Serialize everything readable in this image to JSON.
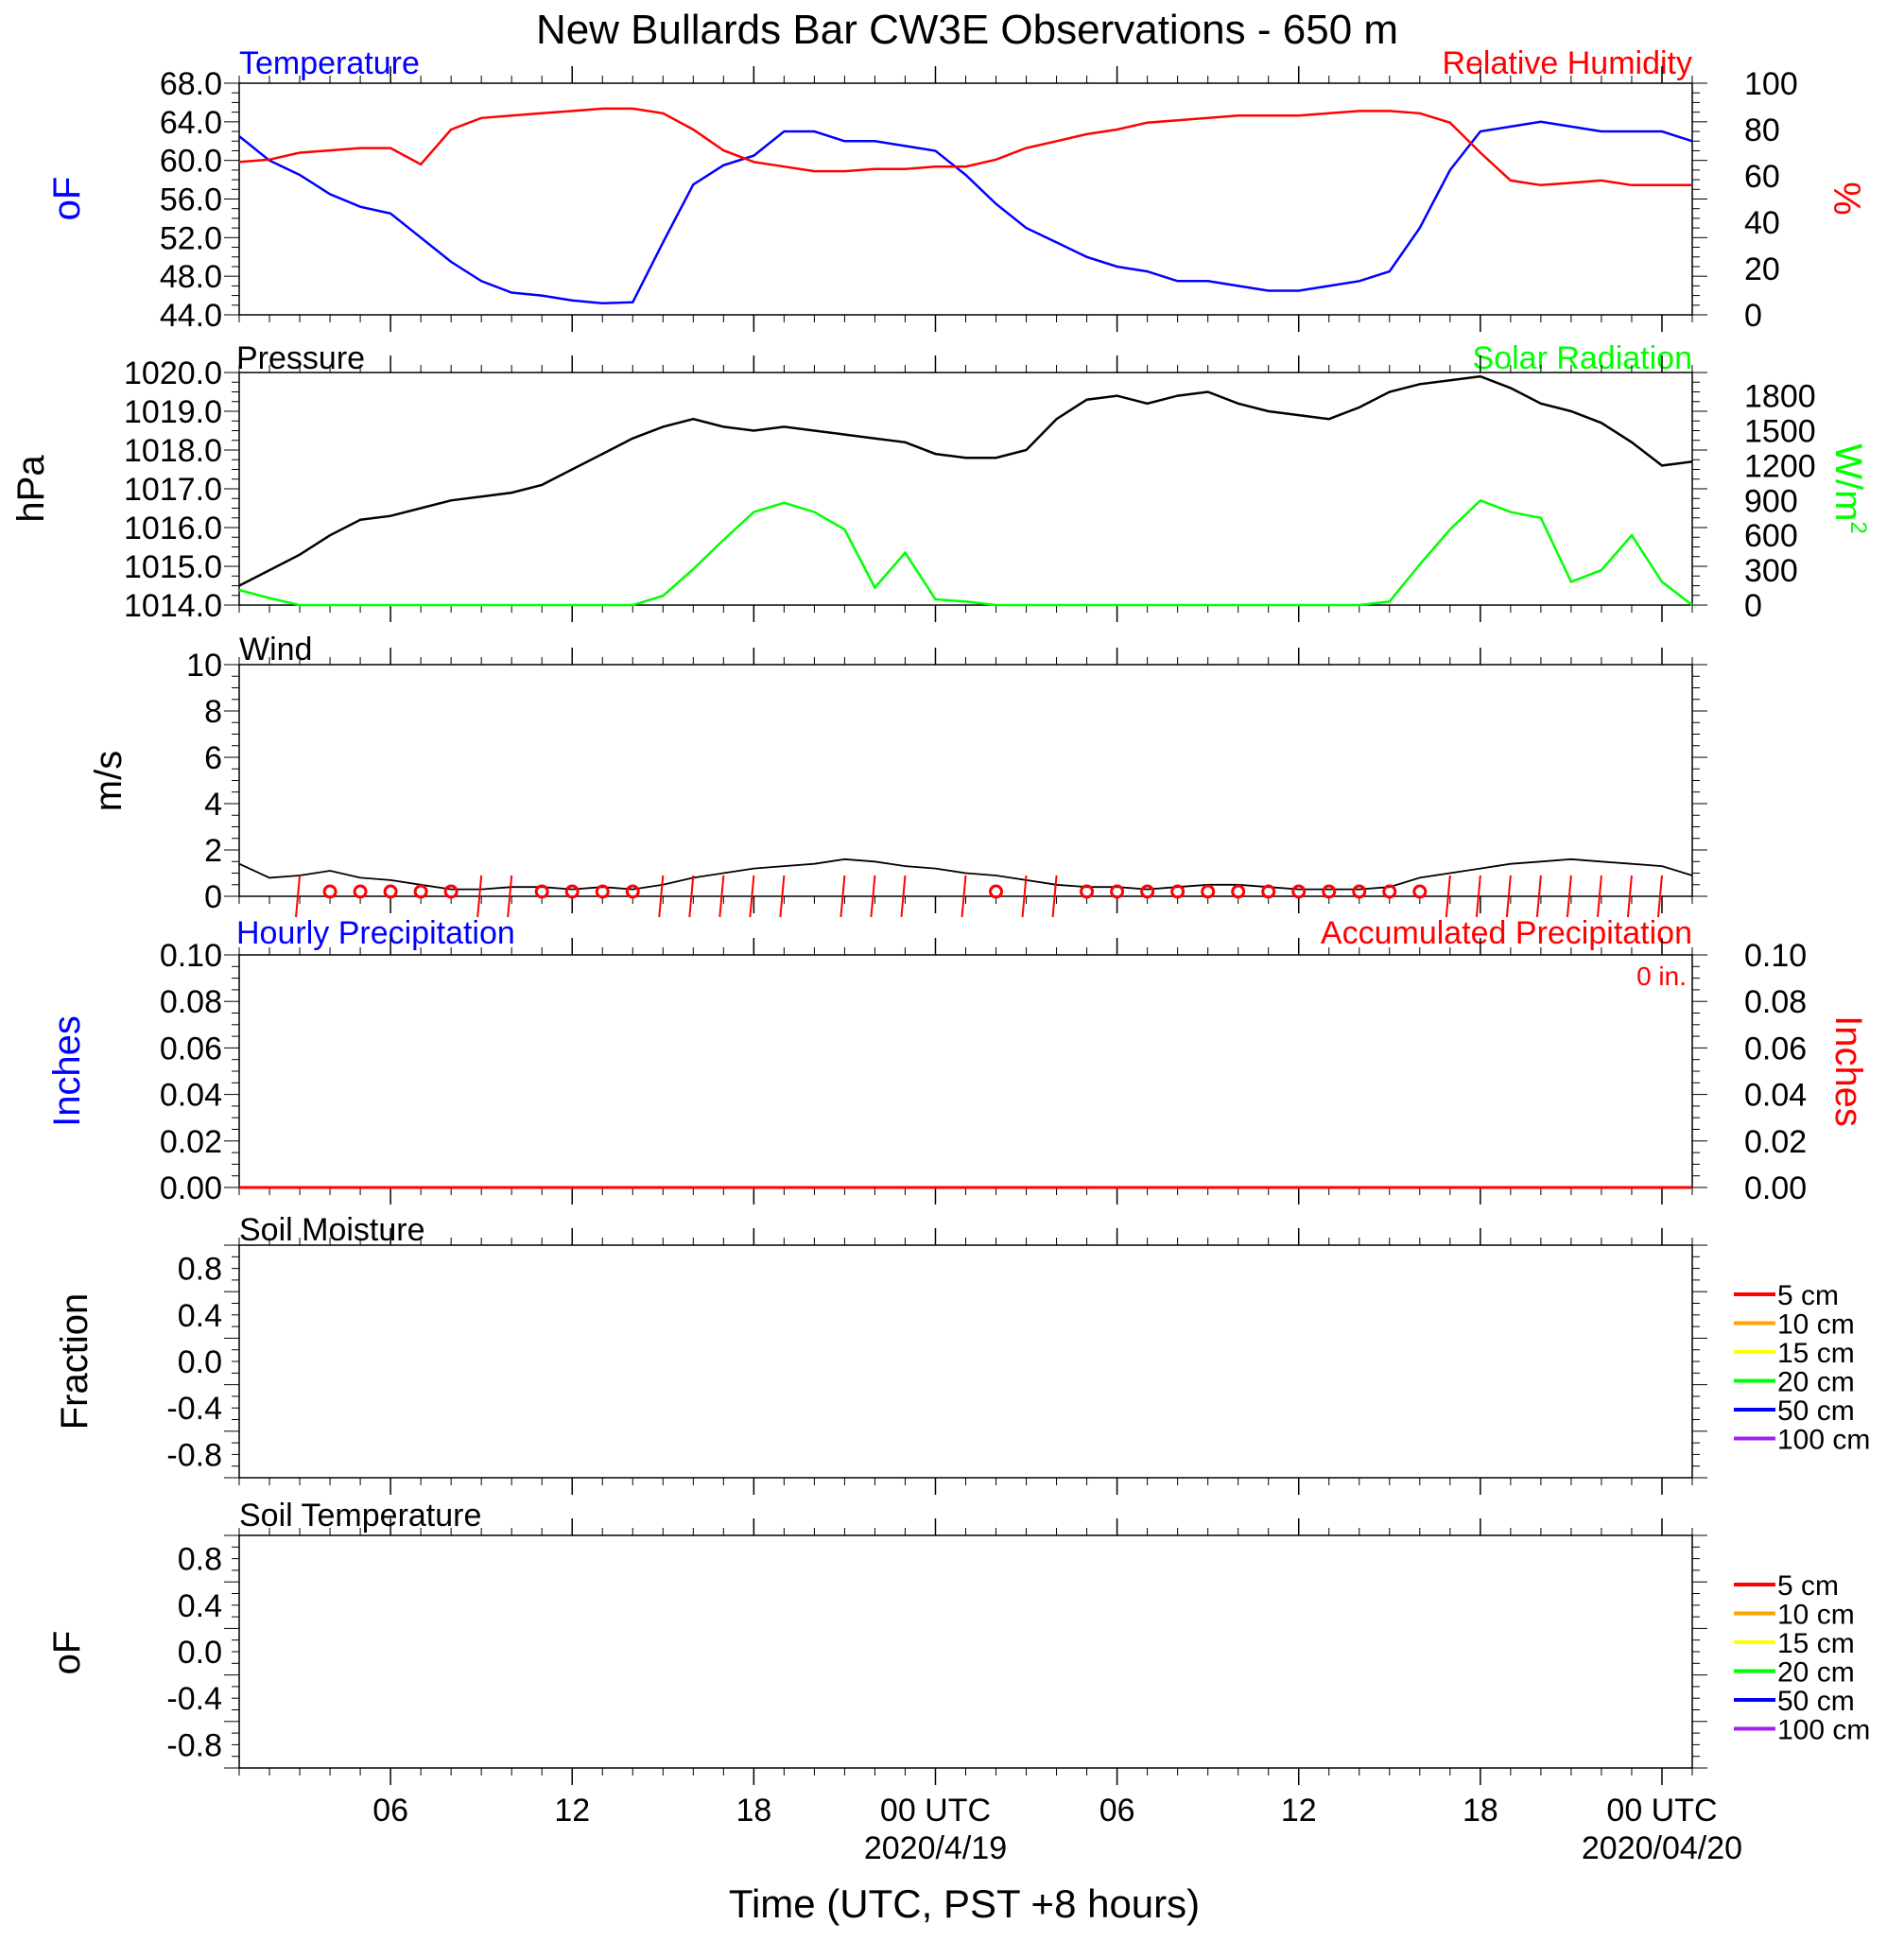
{
  "title": "New Bullards Bar CW3E Observations - 650 m",
  "xaxis": {
    "label": "Time (UTC, PST +8 hours)",
    "ticks": [
      "06",
      "12",
      "18",
      "00 UTC",
      "06",
      "12",
      "18",
      "00 UTC"
    ],
    "tick_hours": [
      6,
      12,
      18,
      24,
      30,
      36,
      42,
      48
    ],
    "dates": [
      {
        "hour": 24,
        "text": "2020/4/19"
      },
      {
        "hour": 48,
        "text": "2020/04/20"
      }
    ],
    "range_hours": [
      1,
      49
    ]
  },
  "colors": {
    "temperature": "#0000ff",
    "humidity": "#ff0000",
    "pressure": "#000000",
    "solar": "#00ff00",
    "wind": "#000000",
    "barb": "#ff0000",
    "hourly_precip": "#0000ff",
    "accum_precip": "#ff0000"
  },
  "panels": {
    "temp": {
      "left_title": "Temperature",
      "right_title": "Relative Humidity",
      "left_unit": "oF",
      "right_unit": "%",
      "left_ticks": [
        "68.0",
        "64.0",
        "60.0",
        "56.0",
        "52.0",
        "48.0",
        "44.0"
      ],
      "right_ticks": [
        "100",
        "80",
        "60",
        "40",
        "20",
        "0"
      ]
    },
    "pressure": {
      "left_title": "Pressure",
      "right_title": "Solar Radiation",
      "left_unit": "hPa",
      "right_unit": "W/m2",
      "left_ticks": [
        "1020.0",
        "1019.0",
        "1018.0",
        "1017.0",
        "1016.0",
        "1015.0",
        "1014.0"
      ],
      "right_ticks": [
        "1800",
        "1500",
        "1200",
        "900",
        "600",
        "300",
        "0"
      ]
    },
    "wind": {
      "left_title": "Wind",
      "left_unit": "m/s",
      "left_ticks": [
        "10",
        "8",
        "6",
        "4",
        "2",
        "0"
      ]
    },
    "precip": {
      "left_title": "Hourly Precipitation",
      "right_title": "Accumulated Precipitation",
      "left_unit": "Inches",
      "right_unit": "Inches",
      "total_text": "0 in.",
      "left_ticks": [
        "0.10",
        "0.08",
        "0.06",
        "0.04",
        "0.02",
        "0.00"
      ],
      "right_ticks": [
        "0.10",
        "0.08",
        "0.06",
        "0.04",
        "0.02",
        "0.00"
      ]
    },
    "soil_moisture": {
      "left_title": "Soil Moisture",
      "left_unit": "Fraction",
      "left_ticks": [
        "0.8",
        "0.4",
        "0.0",
        "-0.4",
        "-0.8"
      ]
    },
    "soil_temp": {
      "left_title": "Soil Temperature",
      "left_unit": "oF",
      "left_ticks": [
        "0.8",
        "0.4",
        "0.0",
        "-0.4",
        "-0.8"
      ]
    }
  },
  "legend": [
    {
      "label": "5 cm",
      "color": "#ff0000"
    },
    {
      "label": "10 cm",
      "color": "#ffa500"
    },
    {
      "label": "15 cm",
      "color": "#ffff00"
    },
    {
      "label": "20 cm",
      "color": "#00ff00"
    },
    {
      "label": "50 cm",
      "color": "#0000ff"
    },
    {
      "label": "100 cm",
      "color": "#a020f0"
    }
  ],
  "chart_data": [
    {
      "type": "line",
      "title": "Temperature / Relative Humidity",
      "x_units": "hours UTC since 2020-04-18 00:00",
      "series": [
        {
          "name": "Temperature",
          "axis": "left",
          "ylim": [
            44,
            68
          ],
          "x": [
            1,
            2,
            3,
            4,
            5,
            6,
            7,
            8,
            9,
            10,
            11,
            12,
            13,
            14,
            15,
            16,
            17,
            18,
            19,
            20,
            21,
            22,
            23,
            24,
            25,
            26,
            27,
            28,
            29,
            30,
            31,
            32,
            33,
            34,
            35,
            36,
            37,
            38,
            39,
            40,
            41,
            42,
            43,
            44,
            45,
            46,
            47,
            48,
            49
          ],
          "y": [
            62.5,
            60.0,
            58.5,
            56.5,
            55.2,
            54.5,
            52.0,
            49.5,
            47.5,
            46.3,
            46.0,
            45.5,
            45.2,
            45.3,
            51.5,
            57.5,
            59.5,
            60.5,
            63.0,
            63.0,
            62.0,
            62.0,
            61.5,
            61.0,
            58.5,
            55.5,
            53.0,
            51.5,
            50.0,
            49.0,
            48.5,
            47.5,
            47.5,
            47.0,
            46.5,
            46.5,
            47.0,
            47.5,
            48.5,
            53.0,
            59.0,
            63.0,
            63.5,
            64.0,
            63.5,
            63.0,
            63.0,
            63.0,
            62.0
          ]
        },
        {
          "name": "Relative Humidity",
          "axis": "right",
          "ylim": [
            0,
            100
          ],
          "x": [
            1,
            2,
            3,
            4,
            5,
            6,
            7,
            8,
            9,
            10,
            11,
            12,
            13,
            14,
            15,
            16,
            17,
            18,
            19,
            20,
            21,
            22,
            23,
            24,
            25,
            26,
            27,
            28,
            29,
            30,
            31,
            32,
            33,
            34,
            35,
            36,
            37,
            38,
            39,
            40,
            41,
            42,
            43,
            44,
            45,
            46,
            47,
            48,
            49
          ],
          "y": [
            66,
            67,
            70,
            71,
            72,
            72,
            65,
            80,
            85,
            86,
            87,
            88,
            89,
            89,
            87,
            80,
            71,
            66,
            64,
            62,
            62,
            63,
            63,
            64,
            64,
            67,
            72,
            75,
            78,
            80,
            83,
            84,
            85,
            86,
            86,
            86,
            87,
            88,
            88,
            87,
            83,
            70,
            58,
            56,
            57,
            58,
            56,
            56,
            56
          ]
        }
      ]
    },
    {
      "type": "line",
      "title": "Pressure / Solar Radiation",
      "x_units": "hours UTC since 2020-04-18 00:00",
      "series": [
        {
          "name": "Pressure",
          "axis": "left",
          "ylim": [
            1014,
            1020
          ],
          "x": [
            1,
            2,
            3,
            4,
            5,
            6,
            7,
            8,
            9,
            10,
            11,
            12,
            13,
            14,
            15,
            16,
            17,
            18,
            19,
            20,
            21,
            22,
            23,
            24,
            25,
            26,
            27,
            28,
            29,
            30,
            31,
            32,
            33,
            34,
            35,
            36,
            37,
            38,
            39,
            40,
            41,
            42,
            43,
            44,
            45,
            46,
            47,
            48,
            49
          ],
          "y": [
            1014.5,
            1014.9,
            1015.3,
            1015.8,
            1016.2,
            1016.3,
            1016.5,
            1016.7,
            1016.8,
            1016.9,
            1017.1,
            1017.5,
            1017.9,
            1018.3,
            1018.6,
            1018.8,
            1018.6,
            1018.5,
            1018.6,
            1018.5,
            1018.4,
            1018.3,
            1018.2,
            1017.9,
            1017.8,
            1017.8,
            1018.0,
            1018.8,
            1019.3,
            1019.4,
            1019.2,
            1019.4,
            1019.5,
            1019.2,
            1019.0,
            1018.9,
            1018.8,
            1019.1,
            1019.5,
            1019.7,
            1019.8,
            1019.9,
            1019.6,
            1019.2,
            1019.0,
            1018.7,
            1018.2,
            1017.6,
            1017.7
          ]
        },
        {
          "name": "Solar Radiation",
          "axis": "right",
          "ylim": [
            0,
            2000
          ],
          "x": [
            1,
            2,
            3,
            4,
            5,
            6,
            7,
            8,
            9,
            10,
            11,
            12,
            13,
            14,
            15,
            16,
            17,
            18,
            19,
            20,
            21,
            22,
            23,
            24,
            25,
            26,
            27,
            28,
            29,
            30,
            31,
            32,
            33,
            34,
            35,
            36,
            37,
            38,
            39,
            40,
            41,
            42,
            43,
            44,
            45,
            46,
            47,
            48,
            49
          ],
          "y": [
            130,
            60,
            0,
            0,
            0,
            0,
            0,
            0,
            0,
            0,
            0,
            0,
            0,
            0,
            80,
            310,
            560,
            800,
            880,
            800,
            650,
            150,
            450,
            50,
            30,
            0,
            0,
            0,
            0,
            0,
            0,
            0,
            0,
            0,
            0,
            0,
            0,
            0,
            30,
            350,
            650,
            900,
            800,
            750,
            200,
            300,
            600,
            200,
            0
          ]
        }
      ]
    },
    {
      "type": "line",
      "title": "Wind",
      "x_units": "hours UTC since 2020-04-18 00:00",
      "ylim": [
        0,
        10
      ],
      "series": [
        {
          "name": "Wind",
          "x": [
            1,
            2,
            3,
            4,
            5,
            6,
            7,
            8,
            9,
            10,
            11,
            12,
            13,
            14,
            15,
            16,
            17,
            18,
            19,
            20,
            21,
            22,
            23,
            24,
            25,
            26,
            27,
            28,
            29,
            30,
            31,
            32,
            33,
            34,
            35,
            36,
            37,
            38,
            39,
            40,
            41,
            42,
            43,
            44,
            45,
            46,
            47,
            48,
            49
          ],
          "y": [
            1.4,
            0.8,
            0.9,
            1.1,
            0.8,
            0.7,
            0.5,
            0.3,
            0.3,
            0.4,
            0.4,
            0.3,
            0.4,
            0.3,
            0.5,
            0.8,
            1.0,
            1.2,
            1.3,
            1.4,
            1.6,
            1.5,
            1.3,
            1.2,
            1.0,
            0.9,
            0.7,
            0.5,
            0.4,
            0.4,
            0.3,
            0.4,
            0.5,
            0.5,
            0.4,
            0.3,
            0.3,
            0.3,
            0.4,
            0.8,
            1.0,
            1.2,
            1.4,
            1.5,
            1.6,
            1.5,
            1.4,
            1.3,
            0.9
          ]
        }
      ],
      "calm_hours": [
        4,
        5,
        6,
        7,
        8,
        11,
        12,
        13,
        14,
        26,
        29,
        30,
        31,
        32,
        33,
        34,
        35,
        36,
        37,
        38,
        39,
        40
      ],
      "barb_hours": [
        3,
        9,
        10,
        15,
        16,
        17,
        18,
        19,
        21,
        22,
        23,
        25,
        27,
        28,
        41,
        42,
        43,
        44,
        45,
        46,
        47,
        48
      ]
    },
    {
      "type": "line",
      "title": "Hourly / Accumulated Precipitation",
      "ylim": [
        0,
        0.1
      ],
      "series": [
        {
          "name": "Hourly Precipitation",
          "x": [
            1,
            49
          ],
          "y": [
            0,
            0
          ]
        },
        {
          "name": "Accumulated Precipitation",
          "x": [
            1,
            49
          ],
          "y": [
            0,
            0
          ]
        }
      ]
    },
    {
      "type": "line",
      "title": "Soil Moisture",
      "ylim": [
        -1,
        1
      ],
      "series": []
    },
    {
      "type": "line",
      "title": "Soil Temperature",
      "ylim": [
        -1,
        1
      ],
      "series": []
    }
  ]
}
